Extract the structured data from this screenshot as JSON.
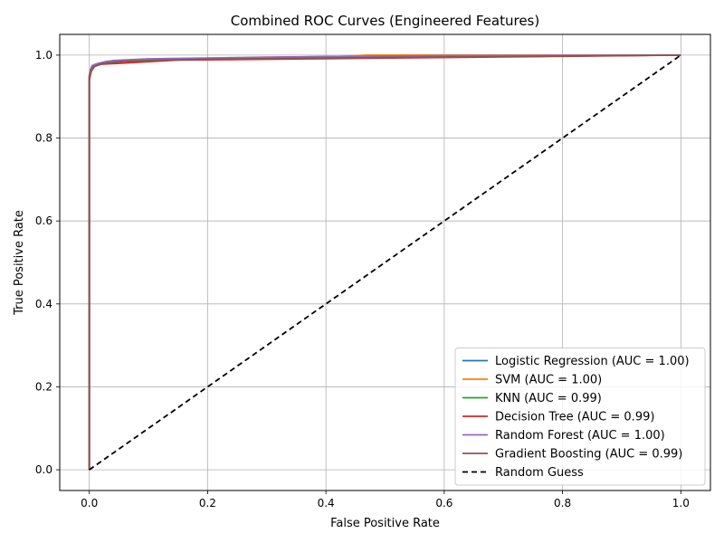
{
  "chart_data": {
    "type": "line",
    "title": "Combined ROC Curves (Engineered Features)",
    "xlabel": "False Positive Rate",
    "ylabel": "True Positive Rate",
    "xlim": [
      -0.05,
      1.05
    ],
    "ylim": [
      -0.05,
      1.05
    ],
    "xticks": [
      0.0,
      0.2,
      0.4,
      0.6,
      0.8,
      1.0
    ],
    "yticks": [
      0.0,
      0.2,
      0.4,
      0.6,
      0.8,
      1.0
    ],
    "tick_labels_x": [
      "0.0",
      "0.2",
      "0.4",
      "0.6",
      "0.8",
      "1.0"
    ],
    "tick_labels_y": [
      "0.0",
      "0.2",
      "0.4",
      "0.6",
      "0.8",
      "1.0"
    ],
    "grid": true,
    "legend_position": "lower-right",
    "series": [
      {
        "name": "Logistic Regression (AUC = 1.00)",
        "color": "#1f77b4",
        "style": "solid",
        "x": [
          0.0,
          0.0,
          0.002,
          0.004,
          0.01,
          0.03,
          0.1,
          0.33,
          0.6,
          1.0
        ],
        "y": [
          0.0,
          0.95,
          0.965,
          0.972,
          0.978,
          0.985,
          0.99,
          0.995,
          1.0,
          1.0
        ]
      },
      {
        "name": "SVM (AUC = 1.00)",
        "color": "#ff7f0e",
        "style": "solid",
        "x": [
          0.0,
          0.0,
          0.002,
          0.006,
          0.02,
          0.05,
          0.15,
          0.4,
          0.47,
          1.0
        ],
        "y": [
          0.0,
          0.95,
          0.966,
          0.973,
          0.979,
          0.985,
          0.99,
          0.995,
          1.0,
          1.0
        ]
      },
      {
        "name": "KNN (AUC = 0.99)",
        "color": "#2ca02c",
        "style": "solid",
        "x": [
          0.0,
          0.0,
          0.003,
          0.01,
          0.03,
          0.08,
          0.2,
          0.5,
          1.0
        ],
        "y": [
          0.0,
          0.94,
          0.96,
          0.975,
          0.982,
          0.988,
          0.99,
          0.995,
          1.0
        ]
      },
      {
        "name": "Decision Tree (AUC = 0.99)",
        "color": "#d62728",
        "style": "solid",
        "x": [
          0.0,
          0.0,
          0.003,
          0.006,
          0.02,
          0.15,
          1.0
        ],
        "y": [
          0.0,
          0.94,
          0.96,
          0.972,
          0.978,
          0.988,
          1.0
        ]
      },
      {
        "name": "Random Forest (AUC = 1.00)",
        "color": "#9467bd",
        "style": "solid",
        "x": [
          0.0,
          0.0,
          0.002,
          0.005,
          0.015,
          0.04,
          0.1,
          0.3,
          0.6,
          1.0
        ],
        "y": [
          0.0,
          0.95,
          0.965,
          0.975,
          0.98,
          0.987,
          0.991,
          0.995,
          0.999,
          1.0
        ]
      },
      {
        "name": "Gradient Boosting (AUC = 0.99)",
        "color": "#8c564b",
        "style": "solid",
        "x": [
          0.0,
          0.0,
          0.003,
          0.008,
          0.02,
          0.06,
          0.2,
          0.5,
          1.0
        ],
        "y": [
          0.0,
          0.945,
          0.962,
          0.972,
          0.979,
          0.985,
          0.99,
          0.994,
          1.0
        ]
      },
      {
        "name": "Random Guess",
        "color": "#000000",
        "style": "dashed",
        "x": [
          0.0,
          1.0
        ],
        "y": [
          0.0,
          1.0
        ]
      }
    ]
  }
}
